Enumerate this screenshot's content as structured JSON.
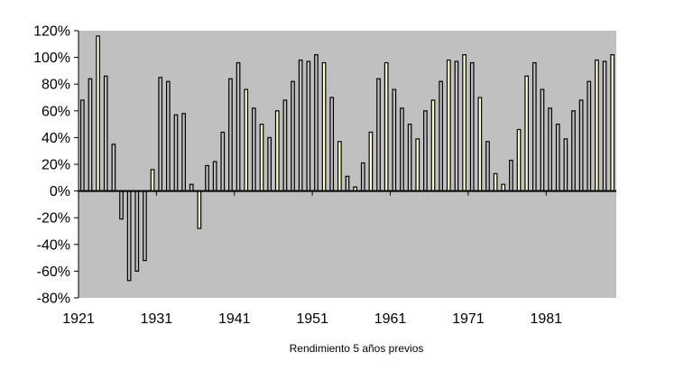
{
  "chart_data": {
    "type": "bar",
    "title": "",
    "xlabel": "Rendimiento  5 años previos",
    "ylabel": "",
    "ylim": [
      -80,
      120
    ],
    "y_ticks": [
      "120%",
      "100%",
      "80%",
      "60%",
      "40%",
      "20%",
      "0%",
      "-20%",
      "-40%",
      "-60%",
      "-80%"
    ],
    "x_tick_labels": [
      "1921",
      "1931",
      "1941",
      "1951",
      "1961",
      "1971",
      "1981"
    ],
    "x_tick_years": [
      1921,
      1931,
      1941,
      1951,
      1961,
      1971,
      1981
    ],
    "grid": false,
    "legend": "none",
    "colors": {
      "plot_bg": "#c0c0c0",
      "bar_dark": "#c0c0c0",
      "bar_light": "#ffffcc",
      "bar_stroke": "#000000"
    },
    "series": [
      {
        "values": [
          {
            "year": 1921,
            "value": 68,
            "shade": "dark"
          },
          {
            "year": 1922,
            "value": 84,
            "shade": "dark"
          },
          {
            "year": 1923,
            "value": 116,
            "shade": "light"
          },
          {
            "year": 1924,
            "value": 86,
            "shade": "dark"
          },
          {
            "year": 1925,
            "value": 35,
            "shade": "dark"
          },
          {
            "year": 1926,
            "value": -21,
            "shade": "dark"
          },
          {
            "year": 1927,
            "value": -67,
            "shade": "dark"
          },
          {
            "year": 1928,
            "value": -60,
            "shade": "dark"
          },
          {
            "year": 1929,
            "value": -52,
            "shade": "dark"
          },
          {
            "year": 1930,
            "value": 16,
            "shade": "light"
          },
          {
            "year": 1931,
            "value": 85,
            "shade": "dark"
          },
          {
            "year": 1932,
            "value": 82,
            "shade": "dark"
          },
          {
            "year": 1933,
            "value": 57,
            "shade": "dark"
          },
          {
            "year": 1934,
            "value": 58,
            "shade": "dark"
          },
          {
            "year": 1935,
            "value": 5,
            "shade": "dark"
          },
          {
            "year": 1936,
            "value": -28,
            "shade": "light"
          },
          {
            "year": 1937,
            "value": 19,
            "shade": "dark"
          },
          {
            "year": 1938,
            "value": 22,
            "shade": "dark"
          },
          {
            "year": 1939,
            "value": 44,
            "shade": "dark"
          },
          {
            "year": 1940,
            "value": 84,
            "shade": "dark"
          },
          {
            "year": 1941,
            "value": 96,
            "shade": "dark"
          },
          {
            "year": 1942,
            "value": 76,
            "shade": "light"
          },
          {
            "year": 1943,
            "value": 62,
            "shade": "dark"
          },
          {
            "year": 1944,
            "value": 50,
            "shade": "light"
          },
          {
            "year": 1945,
            "value": 40,
            "shade": "dark"
          },
          {
            "year": 1946,
            "value": 60,
            "shade": "light"
          },
          {
            "year": 1947,
            "value": 68,
            "shade": "dark"
          },
          {
            "year": 1948,
            "value": 82,
            "shade": "dark"
          },
          {
            "year": 1949,
            "value": 98,
            "shade": "dark"
          },
          {
            "year": 1950,
            "value": 97,
            "shade": "dark"
          },
          {
            "year": 1951,
            "value": 102,
            "shade": "dark"
          },
          {
            "year": 1952,
            "value": 96,
            "shade": "light"
          },
          {
            "year": 1953,
            "value": 70,
            "shade": "dark"
          },
          {
            "year": 1954,
            "value": 37,
            "shade": "light"
          },
          {
            "year": 1955,
            "value": 11,
            "shade": "dark"
          },
          {
            "year": 1956,
            "value": 3,
            "shade": "light"
          },
          {
            "year": 1957,
            "value": 21,
            "shade": "dark"
          },
          {
            "year": 1958,
            "value": 44,
            "shade": "light"
          },
          {
            "year": 1959,
            "value": 84,
            "shade": "dark"
          },
          {
            "year": 1960,
            "value": 96,
            "shade": "light"
          },
          {
            "year": 1961,
            "value": 76,
            "shade": "dark"
          },
          {
            "year": 1962,
            "value": 62,
            "shade": "dark"
          },
          {
            "year": 1963,
            "value": 50,
            "shade": "dark"
          },
          {
            "year": 1964,
            "value": 39,
            "shade": "light"
          },
          {
            "year": 1965,
            "value": 60,
            "shade": "dark"
          },
          {
            "year": 1966,
            "value": 68,
            "shade": "light"
          },
          {
            "year": 1967,
            "value": 82,
            "shade": "dark"
          },
          {
            "year": 1968,
            "value": 98,
            "shade": "light"
          },
          {
            "year": 1969,
            "value": 97,
            "shade": "dark"
          },
          {
            "year": 1970,
            "value": 102,
            "shade": "light"
          },
          {
            "year": 1971,
            "value": 96,
            "shade": "dark"
          },
          {
            "year": 1972,
            "value": 70,
            "shade": "light"
          },
          {
            "year": 1973,
            "value": 37,
            "shade": "dark"
          },
          {
            "year": 1974,
            "value": 13,
            "shade": "light"
          },
          {
            "year": 1975,
            "value": 5,
            "shade": "light"
          },
          {
            "year": 1976,
            "value": 23,
            "shade": "dark"
          },
          {
            "year": 1977,
            "value": 46,
            "shade": "light"
          },
          {
            "year": 1978,
            "value": 86,
            "shade": "light"
          },
          {
            "year": 1979,
            "value": 96,
            "shade": "dark"
          },
          {
            "year": 1980,
            "value": 76,
            "shade": "dark"
          },
          {
            "year": 1981,
            "value": 62,
            "shade": "dark"
          },
          {
            "year": 1982,
            "value": 50,
            "shade": "dark"
          },
          {
            "year": 1983,
            "value": 39,
            "shade": "dark"
          },
          {
            "year": 1984,
            "value": 60,
            "shade": "dark"
          },
          {
            "year": 1985,
            "value": 68,
            "shade": "dark"
          },
          {
            "year": 1986,
            "value": 82,
            "shade": "dark"
          },
          {
            "year": 1987,
            "value": 98,
            "shade": "light"
          },
          {
            "year": 1988,
            "value": 97,
            "shade": "dark"
          },
          {
            "year": 1989,
            "value": 102,
            "shade": "light"
          }
        ]
      }
    ]
  }
}
